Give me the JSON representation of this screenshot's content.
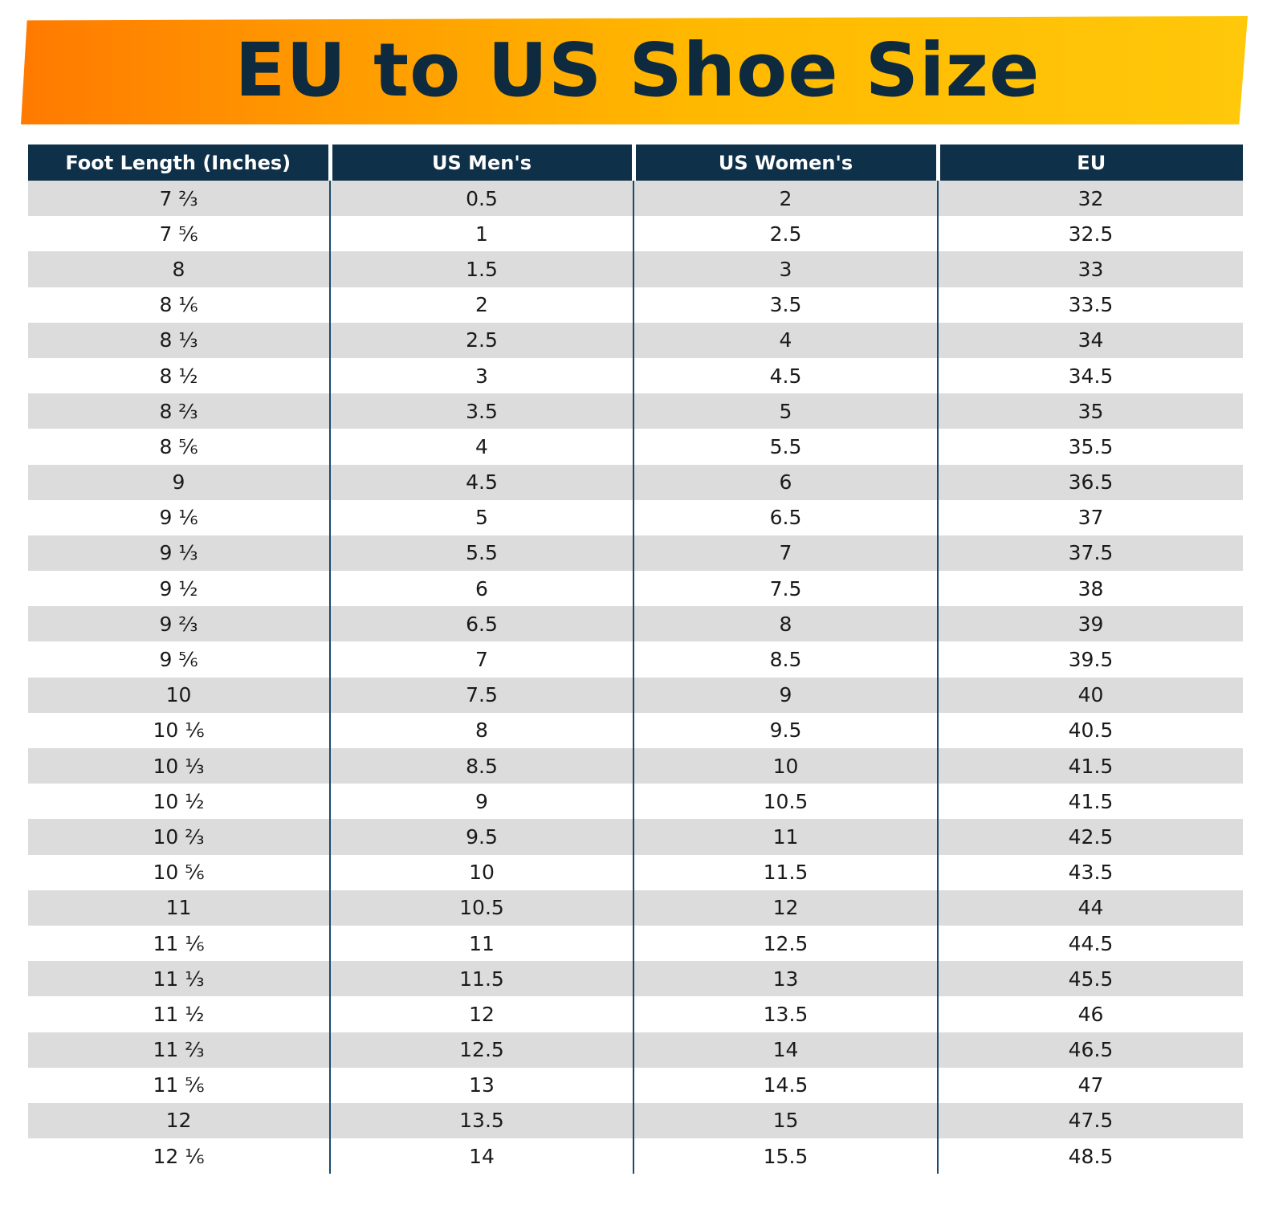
{
  "title": "EU to US Shoe Size",
  "table": {
    "headers": [
      "Foot Length (Inches)",
      "US Men's",
      "US Women's",
      "EU"
    ],
    "rows": [
      [
        "7 ⅔",
        "0.5",
        "2",
        "32"
      ],
      [
        "7 ⅚",
        "1",
        "2.5",
        "32.5"
      ],
      [
        "8",
        "1.5",
        "3",
        "33"
      ],
      [
        "8 ⅙",
        "2",
        "3.5",
        "33.5"
      ],
      [
        "8 ⅓",
        "2.5",
        "4",
        "34"
      ],
      [
        "8 ½",
        "3",
        "4.5",
        "34.5"
      ],
      [
        "8 ⅔",
        "3.5",
        "5",
        "35"
      ],
      [
        "8 ⅚",
        "4",
        "5.5",
        "35.5"
      ],
      [
        "9",
        "4.5",
        "6",
        "36.5"
      ],
      [
        "9 ⅙",
        "5",
        "6.5",
        "37"
      ],
      [
        "9 ⅓",
        "5.5",
        "7",
        "37.5"
      ],
      [
        "9 ½",
        "6",
        "7.5",
        "38"
      ],
      [
        "9 ⅔",
        "6.5",
        "8",
        "39"
      ],
      [
        "9 ⅚",
        "7",
        "8.5",
        "39.5"
      ],
      [
        "10",
        "7.5",
        "9",
        "40"
      ],
      [
        "10 ⅙",
        "8",
        "9.5",
        "40.5"
      ],
      [
        "10 ⅓",
        "8.5",
        "10",
        "41.5"
      ],
      [
        "10 ½",
        "9",
        "10.5",
        "41.5"
      ],
      [
        "10 ⅔",
        "9.5",
        "11",
        "42.5"
      ],
      [
        "10 ⅚",
        "10",
        "11.5",
        "43.5"
      ],
      [
        "11",
        "10.5",
        "12",
        "44"
      ],
      [
        "11 ⅙",
        "11",
        "12.5",
        "44.5"
      ],
      [
        "11 ⅓",
        "11.5",
        "13",
        "45.5"
      ],
      [
        "11 ½",
        "12",
        "13.5",
        "46"
      ],
      [
        "11 ⅔",
        "12.5",
        "14",
        "46.5"
      ],
      [
        "11 ⅚",
        "13",
        "14.5",
        "47"
      ],
      [
        "12",
        "13.5",
        "15",
        "47.5"
      ],
      [
        "12 ⅙",
        "14",
        "15.5",
        "48.5"
      ]
    ]
  },
  "colors": {
    "header_bg": "#0f3049",
    "title_text": "#0e2a3e",
    "banner_start": "#ff7a00",
    "banner_end": "#ffc80a",
    "row_stripe": "#dcdcdc"
  }
}
